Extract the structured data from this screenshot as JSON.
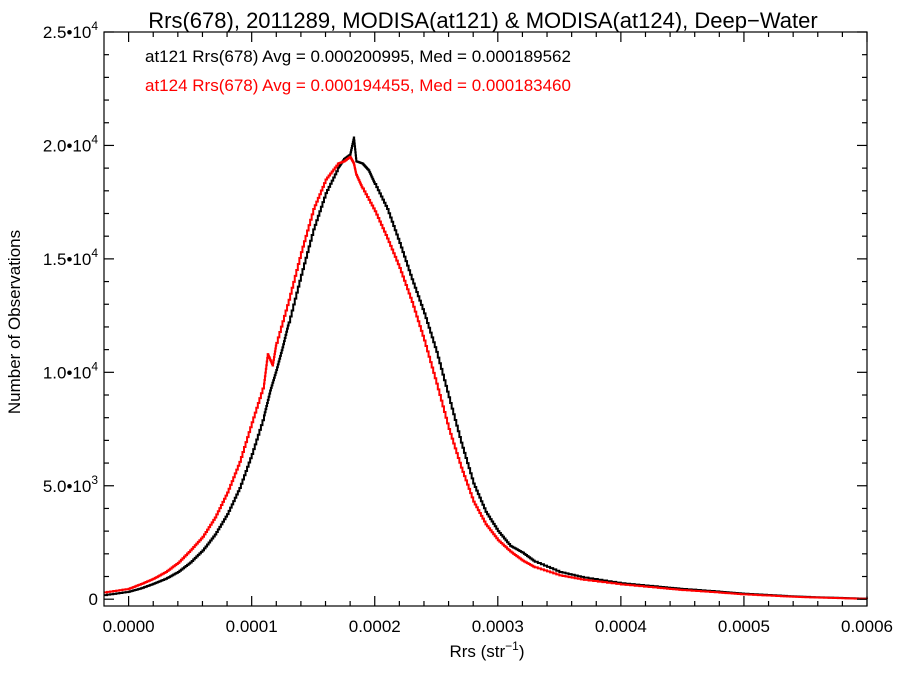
{
  "chart_data": {
    "type": "line",
    "title": "Rrs(678), 2011289, MODISA(at121) & MODISA(at124), Deep−Water",
    "xlabel": "Rrs (str",
    "xlabel_superscript": "−1",
    "xlabel_suffix": ")",
    "ylabel": "Number of Observations",
    "xlim": [
      -2e-05,
      0.0006
    ],
    "ylim": [
      -300,
      25000
    ],
    "x_ticks": [
      {
        "value": 0.0,
        "label": "0.0000"
      },
      {
        "value": 0.0001,
        "label": "0.0001"
      },
      {
        "value": 0.0002,
        "label": "0.0002"
      },
      {
        "value": 0.0003,
        "label": "0.0003"
      },
      {
        "value": 0.0004,
        "label": "0.0004"
      },
      {
        "value": 0.0005,
        "label": "0.0005"
      },
      {
        "value": 0.0006,
        "label": "0.0006"
      }
    ],
    "y_ticks": [
      {
        "value": 0,
        "label": "0"
      },
      {
        "value": 5000,
        "mantissa": "5.0•10",
        "exp": "3"
      },
      {
        "value": 10000,
        "mantissa": "1.0•10",
        "exp": "4"
      },
      {
        "value": 15000,
        "mantissa": "1.5•10",
        "exp": "4"
      },
      {
        "value": 20000,
        "mantissa": "2.0•10",
        "exp": "4"
      },
      {
        "value": 25000,
        "mantissa": "2.5•10",
        "exp": "4"
      }
    ],
    "grid": false,
    "legend_position": "top-left",
    "series": [
      {
        "name": "at121 Rrs(678) Avg = 0.000200995, Med = 0.000189562",
        "color": "#000000",
        "step": true,
        "points": [
          [
            -2e-05,
            180
          ],
          [
            0.0,
            330
          ],
          [
            1e-05,
            480
          ],
          [
            2e-05,
            680
          ],
          [
            3e-05,
            900
          ],
          [
            4e-05,
            1200
          ],
          [
            5e-05,
            1620
          ],
          [
            6e-05,
            2150
          ],
          [
            7e-05,
            2850
          ],
          [
            8e-05,
            3750
          ],
          [
            9e-05,
            4900
          ],
          [
            0.0001,
            6400
          ],
          [
            0.00011,
            8100
          ],
          [
            0.000115,
            9200
          ],
          [
            0.00012,
            10100
          ],
          [
            0.000125,
            11100
          ],
          [
            0.00013,
            12200
          ],
          [
            0.00014,
            14300
          ],
          [
            0.00015,
            16300
          ],
          [
            0.00016,
            17900
          ],
          [
            0.00017,
            19000
          ],
          [
            0.000175,
            19400
          ],
          [
            0.00018,
            19600
          ],
          [
            0.000183,
            20350
          ],
          [
            0.000185,
            19300
          ],
          [
            0.00019,
            19200
          ],
          [
            0.000195,
            18900
          ],
          [
            0.0002,
            18300
          ],
          [
            0.00021,
            17200
          ],
          [
            0.00022,
            15700
          ],
          [
            0.00023,
            14100
          ],
          [
            0.00024,
            12600
          ],
          [
            0.00025,
            10900
          ],
          [
            0.00026,
            8900
          ],
          [
            0.00027,
            6900
          ],
          [
            0.00028,
            5100
          ],
          [
            0.00029,
            3850
          ],
          [
            0.0003,
            3000
          ],
          [
            0.00031,
            2350
          ],
          [
            0.00032,
            2050
          ],
          [
            0.00033,
            1650
          ],
          [
            0.00035,
            1200
          ],
          [
            0.00037,
            950
          ],
          [
            0.0004,
            700
          ],
          [
            0.00043,
            550
          ],
          [
            0.00045,
            450
          ],
          [
            0.00048,
            330
          ],
          [
            0.0005,
            240
          ],
          [
            0.00053,
            150
          ],
          [
            0.00055,
            100
          ],
          [
            0.00058,
            50
          ],
          [
            0.0006,
            20
          ]
        ]
      },
      {
        "name": "at124 Rrs(678) Avg = 0.000194455, Med = 0.000183460",
        "color": "#ff0000",
        "step": true,
        "points": [
          [
            -2e-05,
            300
          ],
          [
            0.0,
            460
          ],
          [
            1e-05,
            670
          ],
          [
            2e-05,
            900
          ],
          [
            3e-05,
            1200
          ],
          [
            4e-05,
            1600
          ],
          [
            5e-05,
            2150
          ],
          [
            6e-05,
            2750
          ],
          [
            7e-05,
            3600
          ],
          [
            8e-05,
            4700
          ],
          [
            9e-05,
            6050
          ],
          [
            0.0001,
            7800
          ],
          [
            0.00011,
            9500
          ],
          [
            0.000113,
            10800
          ],
          [
            0.000117,
            10300
          ],
          [
            0.00012,
            11300
          ],
          [
            0.00013,
            13200
          ],
          [
            0.00014,
            15300
          ],
          [
            0.00015,
            17200
          ],
          [
            0.00016,
            18500
          ],
          [
            0.00017,
            19200
          ],
          [
            0.000175,
            19300
          ],
          [
            0.00018,
            19500
          ],
          [
            0.000183,
            19200
          ],
          [
            0.000185,
            18700
          ],
          [
            0.00019,
            18100
          ],
          [
            0.0002,
            17100
          ],
          [
            0.00021,
            15900
          ],
          [
            0.00022,
            14600
          ],
          [
            0.00023,
            13100
          ],
          [
            0.00024,
            11400
          ],
          [
            0.00025,
            9500
          ],
          [
            0.00026,
            7500
          ],
          [
            0.00027,
            5800
          ],
          [
            0.00028,
            4300
          ],
          [
            0.00029,
            3300
          ],
          [
            0.0003,
            2600
          ],
          [
            0.00031,
            2100
          ],
          [
            0.00032,
            1700
          ],
          [
            0.00033,
            1400
          ],
          [
            0.00035,
            1050
          ],
          [
            0.00037,
            850
          ],
          [
            0.0004,
            650
          ],
          [
            0.00043,
            500
          ],
          [
            0.00045,
            400
          ],
          [
            0.00048,
            290
          ],
          [
            0.0005,
            210
          ],
          [
            0.00053,
            130
          ],
          [
            0.00055,
            85
          ],
          [
            0.00058,
            40
          ],
          [
            0.0006,
            15
          ]
        ]
      }
    ]
  }
}
